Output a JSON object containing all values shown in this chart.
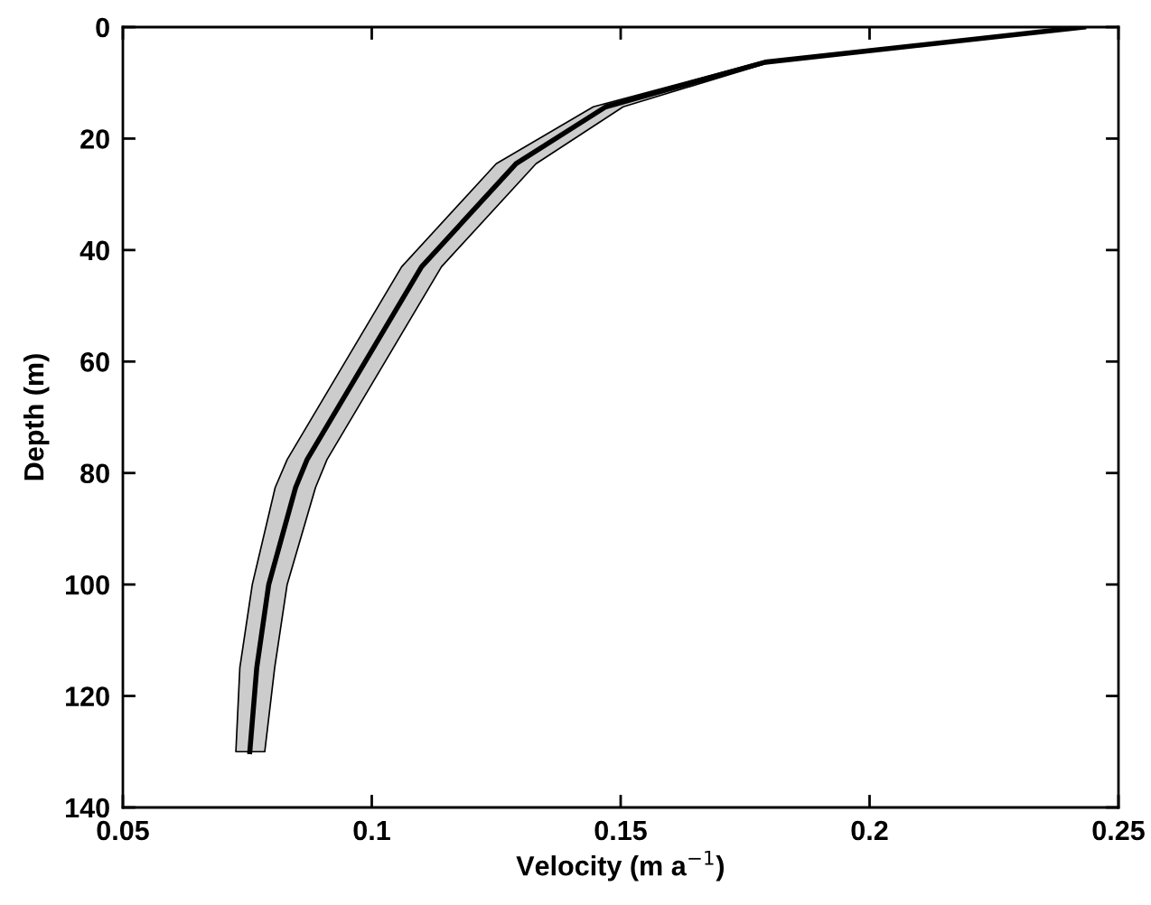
{
  "chart_data": {
    "type": "line",
    "orientation": "horizontal",
    "xlabel": "Velocity (m a$^{−1}$)",
    "ylabel": "Depth (m)",
    "xlim": [
      0.05,
      0.25
    ],
    "xticks": [
      0.05,
      0.1,
      0.15,
      0.2,
      0.25
    ],
    "ylim": [
      140,
      0
    ],
    "yticks": [
      0,
      20,
      40,
      60,
      80,
      100,
      120,
      140
    ],
    "grid": false,
    "legend": false,
    "series": [
      {
        "color": "#000000",
        "x": [
          0,
          6.3,
          14.3,
          24.5,
          43,
          77.6,
          82.6,
          100,
          114.9,
          130
        ],
        "values": [
          0.243,
          0.179,
          0.147,
          0.129,
          0.11,
          0.087,
          0.0847,
          0.0793,
          0.0769,
          0.0755
        ],
        "lower": [
          0.242,
          0.178,
          0.1445,
          0.125,
          0.106,
          0.083,
          0.0806,
          0.076,
          0.0735,
          0.0727
        ],
        "upper": [
          0.244,
          0.18,
          0.1505,
          0.133,
          0.114,
          0.091,
          0.0887,
          0.083,
          0.0805,
          0.0785
        ]
      }
    ]
  }
}
